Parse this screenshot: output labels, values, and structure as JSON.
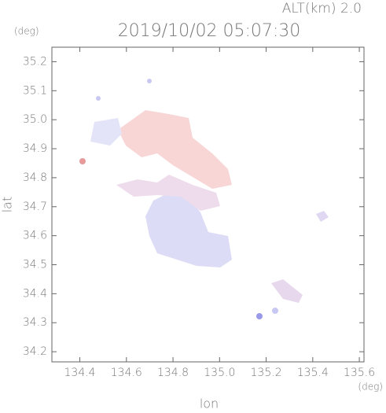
{
  "chart_data": {
    "type": "map",
    "title": "2019/10/02 05:07:30",
    "annotation": "ALT(km) 2.0",
    "y_unit": "(deg)",
    "x_unit": "(deg)",
    "xlabel": "lon",
    "ylabel": "lat",
    "xlim": [
      134.28,
      135.62
    ],
    "ylim": [
      34.165,
      35.25
    ],
    "xticks": [
      134.4,
      134.6,
      134.8,
      {
        "value": 135,
        "label": "135.0"
      },
      135.2,
      135.4,
      135.6
    ],
    "yticks": [
      34.2,
      34.3,
      34.4,
      34.5,
      34.6,
      34.7,
      34.8,
      34.9,
      {
        "value": 35,
        "label": "35.0"
      },
      35.1,
      35.2
    ]
  }
}
